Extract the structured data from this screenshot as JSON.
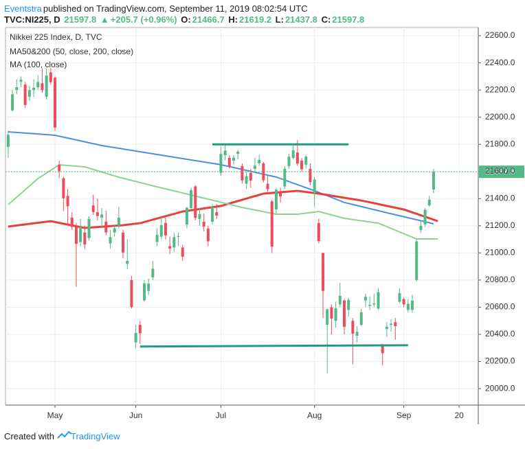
{
  "header": {
    "author": "Eventstra",
    "published": "published on TradingView.com, September 11, 2019 08:02:54 UTC"
  },
  "symbol_bar": {
    "symbol": "TVC:NI225, D",
    "arrow": "▲",
    "change": "+205.7 (+0.96%)",
    "open_label": "O:",
    "high_label": "H:",
    "low_label": "L:",
    "close_label": "C:"
  },
  "chart_data": {
    "type": "candlestick",
    "title": "Nikkei 225 Index, D, TVC",
    "indicators": [
      "MA50&200 (50, close, 200, close)",
      "MA (100, close)"
    ],
    "up_color": "#53b987",
    "down_color": "#eb4d5c",
    "candles": [
      [
        21780,
        21900,
        21700,
        21871
      ],
      [
        22050,
        22200,
        22040,
        22169
      ],
      [
        22200,
        22280,
        22170,
        22221
      ],
      [
        22260,
        22300,
        22220,
        22277
      ],
      [
        22240,
        22260,
        22070,
        22090
      ],
      [
        22150,
        22230,
        22120,
        22200
      ],
      [
        22200,
        22280,
        22150,
        22217
      ],
      [
        22220,
        22310,
        22200,
        22259
      ],
      [
        22250,
        22360,
        22180,
        22200
      ],
      [
        22150,
        22360,
        22130,
        22307
      ],
      [
        22330,
        22360,
        22240,
        22258
      ],
      [
        22290,
        22300,
        21900,
        21923
      ],
      [
        21650,
        21680,
        21550,
        21602
      ],
      [
        21550,
        21560,
        21310,
        21402
      ],
      [
        21420,
        21470,
        21210,
        21344
      ],
      [
        21260,
        21300,
        21170,
        21191
      ],
      [
        21190,
        21220,
        20750,
        21067
      ],
      [
        21080,
        21250,
        21050,
        21188
      ],
      [
        21150,
        21200,
        21030,
        21062
      ],
      [
        21110,
        21270,
        21090,
        21250
      ],
      [
        21350,
        21430,
        21280,
        21301
      ],
      [
        21300,
        21400,
        21240,
        21272
      ],
      [
        21260,
        21330,
        21180,
        21283
      ],
      [
        21230,
        21310,
        21130,
        21151
      ],
      [
        21070,
        21170,
        21030,
        21117
      ],
      [
        21150,
        21210,
        21120,
        21182
      ],
      [
        21200,
        21340,
        21180,
        21260
      ],
      [
        21150,
        21170,
        20960,
        21003
      ],
      [
        20920,
        21100,
        20880,
        20942
      ],
      [
        20800,
        20830,
        20590,
        20601
      ],
      [
        20340,
        20470,
        20300,
        20410
      ],
      [
        20470,
        20500,
        20330,
        20408
      ],
      [
        20650,
        20800,
        20640,
        20776
      ],
      [
        20720,
        20810,
        20690,
        20774
      ],
      [
        20820,
        20940,
        20800,
        20884
      ],
      [
        21080,
        21180,
        21050,
        21134
      ],
      [
        21120,
        21260,
        21100,
        21204
      ],
      [
        21220,
        21260,
        21100,
        21129
      ],
      [
        21050,
        21120,
        20990,
        21032
      ],
      [
        21040,
        21150,
        21010,
        21116
      ],
      [
        21120,
        21150,
        21050,
        21124
      ],
      [
        21040,
        21060,
        20940,
        20972
      ],
      [
        21210,
        21340,
        21180,
        21333
      ],
      [
        21330,
        21480,
        21320,
        21462
      ],
      [
        21490,
        21500,
        21240,
        21258
      ],
      [
        21250,
        21330,
        21200,
        21285
      ],
      [
        21230,
        21290,
        21160,
        21193
      ],
      [
        21180,
        21200,
        21050,
        21086
      ],
      [
        21230,
        21360,
        21210,
        21338
      ],
      [
        21300,
        21360,
        21250,
        21275
      ],
      [
        21590,
        21780,
        21570,
        21729
      ],
      [
        21720,
        21800,
        21680,
        21754
      ],
      [
        21700,
        21720,
        21620,
        21638
      ],
      [
        21680,
        21720,
        21650,
        21702
      ],
      [
        21730,
        21760,
        21690,
        21746
      ],
      [
        21640,
        21660,
        21510,
        21534
      ],
      [
        21510,
        21600,
        21470,
        21565
      ],
      [
        21590,
        21620,
        21480,
        21533
      ],
      [
        21620,
        21700,
        21590,
        21643
      ],
      [
        21660,
        21720,
        21640,
        21685
      ],
      [
        21660,
        21670,
        21520,
        21535
      ],
      [
        21510,
        21570,
        21450,
        21469
      ],
      [
        21380,
        21390,
        21000,
        21046
      ],
      [
        21320,
        21480,
        21290,
        21466
      ],
      [
        21440,
        21480,
        21370,
        21416
      ],
      [
        21490,
        21640,
        21470,
        21620
      ],
      [
        21640,
        21730,
        21620,
        21709
      ],
      [
        21700,
        21790,
        21690,
        21756
      ],
      [
        21740,
        21830,
        21640,
        21658
      ],
      [
        21680,
        21700,
        21600,
        21616
      ],
      [
        21650,
        21720,
        21620,
        21709
      ],
      [
        21620,
        21660,
        21500,
        21521
      ],
      [
        21440,
        21560,
        21340,
        21540
      ],
      [
        21220,
        21250,
        21070,
        21087
      ],
      [
        21000,
        21000,
        20520,
        20720
      ],
      [
        20470,
        20590,
        20110,
        20585
      ],
      [
        20600,
        20620,
        20400,
        20516
      ],
      [
        20500,
        20640,
        20450,
        20593
      ],
      [
        20620,
        20780,
        20600,
        20684
      ],
      [
        20650,
        20660,
        20400,
        20455
      ],
      [
        20580,
        20670,
        20530,
        20655
      ],
      [
        20500,
        20520,
        20180,
        20405
      ],
      [
        20390,
        20460,
        20340,
        20418
      ],
      [
        20470,
        20590,
        20460,
        20563
      ],
      [
        20650,
        20700,
        20600,
        20677
      ],
      [
        20610,
        20680,
        20580,
        20618
      ],
      [
        20620,
        20700,
        20600,
        20628
      ],
      [
        20590,
        20740,
        20580,
        20711
      ],
      [
        20320,
        20330,
        20170,
        20261
      ],
      [
        20440,
        20490,
        20380,
        20456
      ],
      [
        20470,
        20510,
        20420,
        20479
      ],
      [
        20490,
        20520,
        20360,
        20460
      ],
      [
        20640,
        20740,
        20630,
        20704
      ],
      [
        20660,
        20670,
        20600,
        20620
      ],
      [
        20580,
        20660,
        20560,
        20625
      ],
      [
        20580,
        20690,
        20560,
        20649
      ],
      [
        20800,
        21100,
        20790,
        21085
      ],
      [
        21170,
        21230,
        21150,
        21199
      ],
      [
        21210,
        21330,
        21190,
        21318
      ],
      [
        21350,
        21420,
        21340,
        21392
      ],
      [
        21466.7,
        21619.2,
        21437.8,
        21597.8
      ]
    ],
    "lines": [
      {
        "color": "#4a90e2",
        "x": [
          0,
          11,
          22,
          38,
          50,
          63,
          72,
          79,
          89,
          100
        ],
        "values": [
          21892,
          21867,
          21791,
          21710,
          21650,
          21559,
          21458,
          21372,
          21296,
          21215
        ]
      },
      {
        "color": "#e8403a",
        "x": [
          0,
          10,
          18,
          27,
          31,
          41,
          50,
          60,
          68,
          73,
          83,
          93,
          101
        ],
        "values": [
          21194,
          21234,
          21184,
          21204,
          21219,
          21305,
          21346,
          21437,
          21457,
          21437,
          21386,
          21320,
          21234
        ]
      },
      {
        "color": "#8fd18f",
        "x": [
          0,
          7,
          12,
          18,
          26,
          35,
          47,
          55,
          63,
          68,
          73,
          79,
          87,
          96,
          101
        ],
        "values": [
          21356,
          21548,
          21649,
          21634,
          21558,
          21487,
          21396,
          21335,
          21285,
          21285,
          21305,
          21255,
          21219,
          21103,
          21103
        ]
      }
    ],
    "trendlines": [
      {
        "color": "#1f9c7f",
        "x": [
          48,
          80
        ],
        "values": [
          21800,
          21800
        ]
      },
      {
        "color": "#1f9c7f",
        "x": [
          31,
          94
        ],
        "values": [
          20310,
          20320
        ]
      }
    ],
    "last_price_line": true,
    "xlim": [
      -0.63,
      110.5
    ],
    "xticks": [
      {
        "value": 11,
        "label": "May"
      },
      {
        "value": 30,
        "label": "Jun"
      },
      {
        "value": 50,
        "label": "Jul"
      },
      {
        "value": 72,
        "label": "Aug"
      },
      {
        "value": 93,
        "label": "Sep"
      },
      {
        "value": 106,
        "label": "20"
      }
    ],
    "ylim": [
      19879,
      22661
    ],
    "yticks": [
      {
        "value": 20000,
        "label": "20000.0"
      },
      {
        "value": 20200,
        "label": "20200.0"
      },
      {
        "value": 20400,
        "label": "20400.0"
      },
      {
        "value": 20600,
        "label": "20600.0"
      },
      {
        "value": 20800,
        "label": "20800.0"
      },
      {
        "value": 21000,
        "label": "21000.0"
      },
      {
        "value": 21200,
        "label": "21200.0"
      },
      {
        "value": 21400,
        "label": "21400.0"
      },
      {
        "value": 21600,
        "label": "21600.0"
      },
      {
        "value": 21800,
        "label": "21800.0"
      },
      {
        "value": 22000,
        "label": "22000.0"
      },
      {
        "value": 22200,
        "label": "22200.0"
      },
      {
        "value": 22400,
        "label": "22400.0"
      },
      {
        "value": 22600,
        "label": "22600.0"
      }
    ],
    "grid": true
  },
  "footer": {
    "created": "Created with",
    "brand": "TradingView"
  }
}
